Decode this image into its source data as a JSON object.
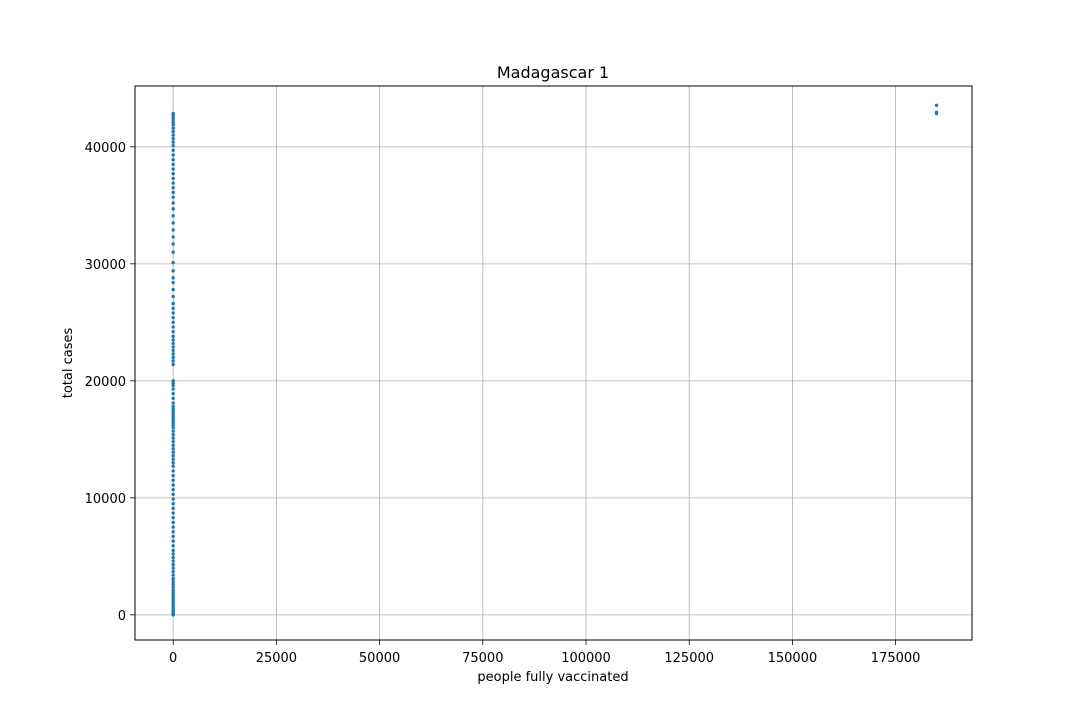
{
  "chart_data": {
    "type": "scatter",
    "title": "Madagascar 1",
    "xlabel": "people fully vaccinated",
    "ylabel": "total cases",
    "xlim": [
      -9250,
      193500
    ],
    "ylim": [
      -2150,
      45200
    ],
    "xticks": [
      0,
      25000,
      50000,
      75000,
      100000,
      125000,
      150000,
      175000
    ],
    "xtick_labels": [
      "0",
      "25000",
      "50000",
      "75000",
      "100000",
      "125000",
      "150000",
      "175000"
    ],
    "yticks": [
      0,
      10000,
      20000,
      30000,
      40000
    ],
    "ytick_labels": [
      "0",
      "10000",
      "20000",
      "30000",
      "40000"
    ],
    "grid": true,
    "marker_color": "#1f77b4",
    "series": [
      {
        "points": [
          [
            0,
            0
          ],
          [
            0,
            100
          ],
          [
            0,
            200
          ],
          [
            0,
            350
          ],
          [
            0,
            500
          ],
          [
            0,
            700
          ],
          [
            0,
            900
          ],
          [
            0,
            1100
          ],
          [
            0,
            1300
          ],
          [
            0,
            1500
          ],
          [
            0,
            1700
          ],
          [
            0,
            1900
          ],
          [
            0,
            2100
          ],
          [
            0,
            2350
          ],
          [
            0,
            2600
          ],
          [
            0,
            2850
          ],
          [
            0,
            3100
          ],
          [
            0,
            3400
          ],
          [
            0,
            3700
          ],
          [
            0,
            4000
          ],
          [
            0,
            4300
          ],
          [
            0,
            4600
          ],
          [
            0,
            4900
          ],
          [
            0,
            5200
          ],
          [
            0,
            5500
          ],
          [
            0,
            5900
          ],
          [
            0,
            6300
          ],
          [
            0,
            6700
          ],
          [
            0,
            7100
          ],
          [
            0,
            7500
          ],
          [
            0,
            7900
          ],
          [
            0,
            8300
          ],
          [
            0,
            8700
          ],
          [
            0,
            9100
          ],
          [
            0,
            9500
          ],
          [
            0,
            9900
          ],
          [
            0,
            10300
          ],
          [
            0,
            10700
          ],
          [
            0,
            11100
          ],
          [
            0,
            11500
          ],
          [
            0,
            11900
          ],
          [
            0,
            12300
          ],
          [
            0,
            12700
          ],
          [
            0,
            13000
          ],
          [
            0,
            13300
          ],
          [
            0,
            13600
          ],
          [
            0,
            13900
          ],
          [
            0,
            14200
          ],
          [
            0,
            14500
          ],
          [
            0,
            14800
          ],
          [
            0,
            15100
          ],
          [
            0,
            15400
          ],
          [
            0,
            15700
          ],
          [
            0,
            16000
          ],
          [
            0,
            16200
          ],
          [
            0,
            16400
          ],
          [
            0,
            16600
          ],
          [
            0,
            16800
          ],
          [
            0,
            17000
          ],
          [
            0,
            17200
          ],
          [
            0,
            17400
          ],
          [
            0,
            17600
          ],
          [
            0,
            17800
          ],
          [
            0,
            18100
          ],
          [
            0,
            18500
          ],
          [
            0,
            18900
          ],
          [
            0,
            19300
          ],
          [
            0,
            19600
          ],
          [
            0,
            19800
          ],
          [
            0,
            20000
          ],
          [
            0,
            21400
          ],
          [
            0,
            21700
          ],
          [
            0,
            22000
          ],
          [
            0,
            22300
          ],
          [
            0,
            22600
          ],
          [
            0,
            22900
          ],
          [
            0,
            23200
          ],
          [
            0,
            23500
          ],
          [
            0,
            23800
          ],
          [
            0,
            24200
          ],
          [
            0,
            24600
          ],
          [
            0,
            25000
          ],
          [
            0,
            25400
          ],
          [
            0,
            25800
          ],
          [
            0,
            26200
          ],
          [
            0,
            26600
          ],
          [
            0,
            27200
          ],
          [
            0,
            27800
          ],
          [
            0,
            28400
          ],
          [
            0,
            28800
          ],
          [
            0,
            29400
          ],
          [
            0,
            30100
          ],
          [
            0,
            31000
          ],
          [
            0,
            31700
          ],
          [
            0,
            32300
          ],
          [
            0,
            32900
          ],
          [
            0,
            33500
          ],
          [
            0,
            34100
          ],
          [
            0,
            34700
          ],
          [
            0,
            35200
          ],
          [
            0,
            35700
          ],
          [
            0,
            36100
          ],
          [
            0,
            36500
          ],
          [
            0,
            36900
          ],
          [
            0,
            37300
          ],
          [
            0,
            37700
          ],
          [
            0,
            38100
          ],
          [
            0,
            38500
          ],
          [
            0,
            38900
          ],
          [
            0,
            39300
          ],
          [
            0,
            39700
          ],
          [
            0,
            40100
          ],
          [
            0,
            40400
          ],
          [
            0,
            40700
          ],
          [
            0,
            41000
          ],
          [
            0,
            41300
          ],
          [
            0,
            41600
          ],
          [
            0,
            41900
          ],
          [
            0,
            42100
          ],
          [
            0,
            42300
          ],
          [
            0,
            42500
          ],
          [
            0,
            42700
          ],
          [
            0,
            42850
          ],
          [
            184900,
            42850
          ],
          [
            184900,
            42950
          ],
          [
            184900,
            43550
          ]
        ]
      }
    ]
  }
}
